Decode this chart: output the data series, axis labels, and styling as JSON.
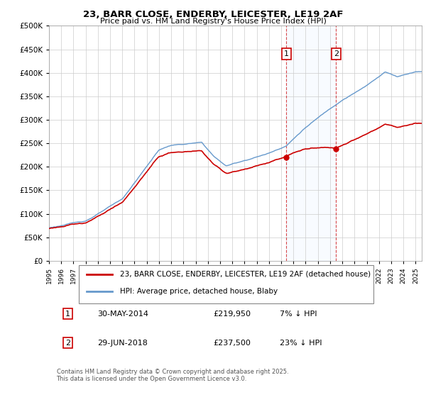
{
  "title": "23, BARR CLOSE, ENDERBY, LEICESTER, LE19 2AF",
  "subtitle": "Price paid vs. HM Land Registry's House Price Index (HPI)",
  "legend_house": "23, BARR CLOSE, ENDERBY, LEICESTER, LE19 2AF (detached house)",
  "legend_hpi": "HPI: Average price, detached house, Blaby",
  "annotation1_label": "1",
  "annotation1_date": "30-MAY-2014",
  "annotation1_price": "£219,950",
  "annotation1_hpi": "7% ↓ HPI",
  "annotation2_label": "2",
  "annotation2_date": "29-JUN-2018",
  "annotation2_price": "£237,500",
  "annotation2_hpi": "23% ↓ HPI",
  "footnote": "Contains HM Land Registry data © Crown copyright and database right 2025.\nThis data is licensed under the Open Government Licence v3.0.",
  "house_color": "#cc0000",
  "hpi_color": "#6699cc",
  "background_color": "#ffffff",
  "plot_bg_color": "#ffffff",
  "grid_color": "#cccccc",
  "shade_color": "#ddeeff",
  "ylim": [
    0,
    500000
  ],
  "yticks": [
    0,
    50000,
    100000,
    150000,
    200000,
    250000,
    300000,
    350000,
    400000,
    450000,
    500000
  ],
  "sale1_x": 2014.42,
  "sale1_y": 219950,
  "sale2_x": 2018.49,
  "sale2_y": 237500,
  "xmin": 1995,
  "xmax": 2025.5
}
